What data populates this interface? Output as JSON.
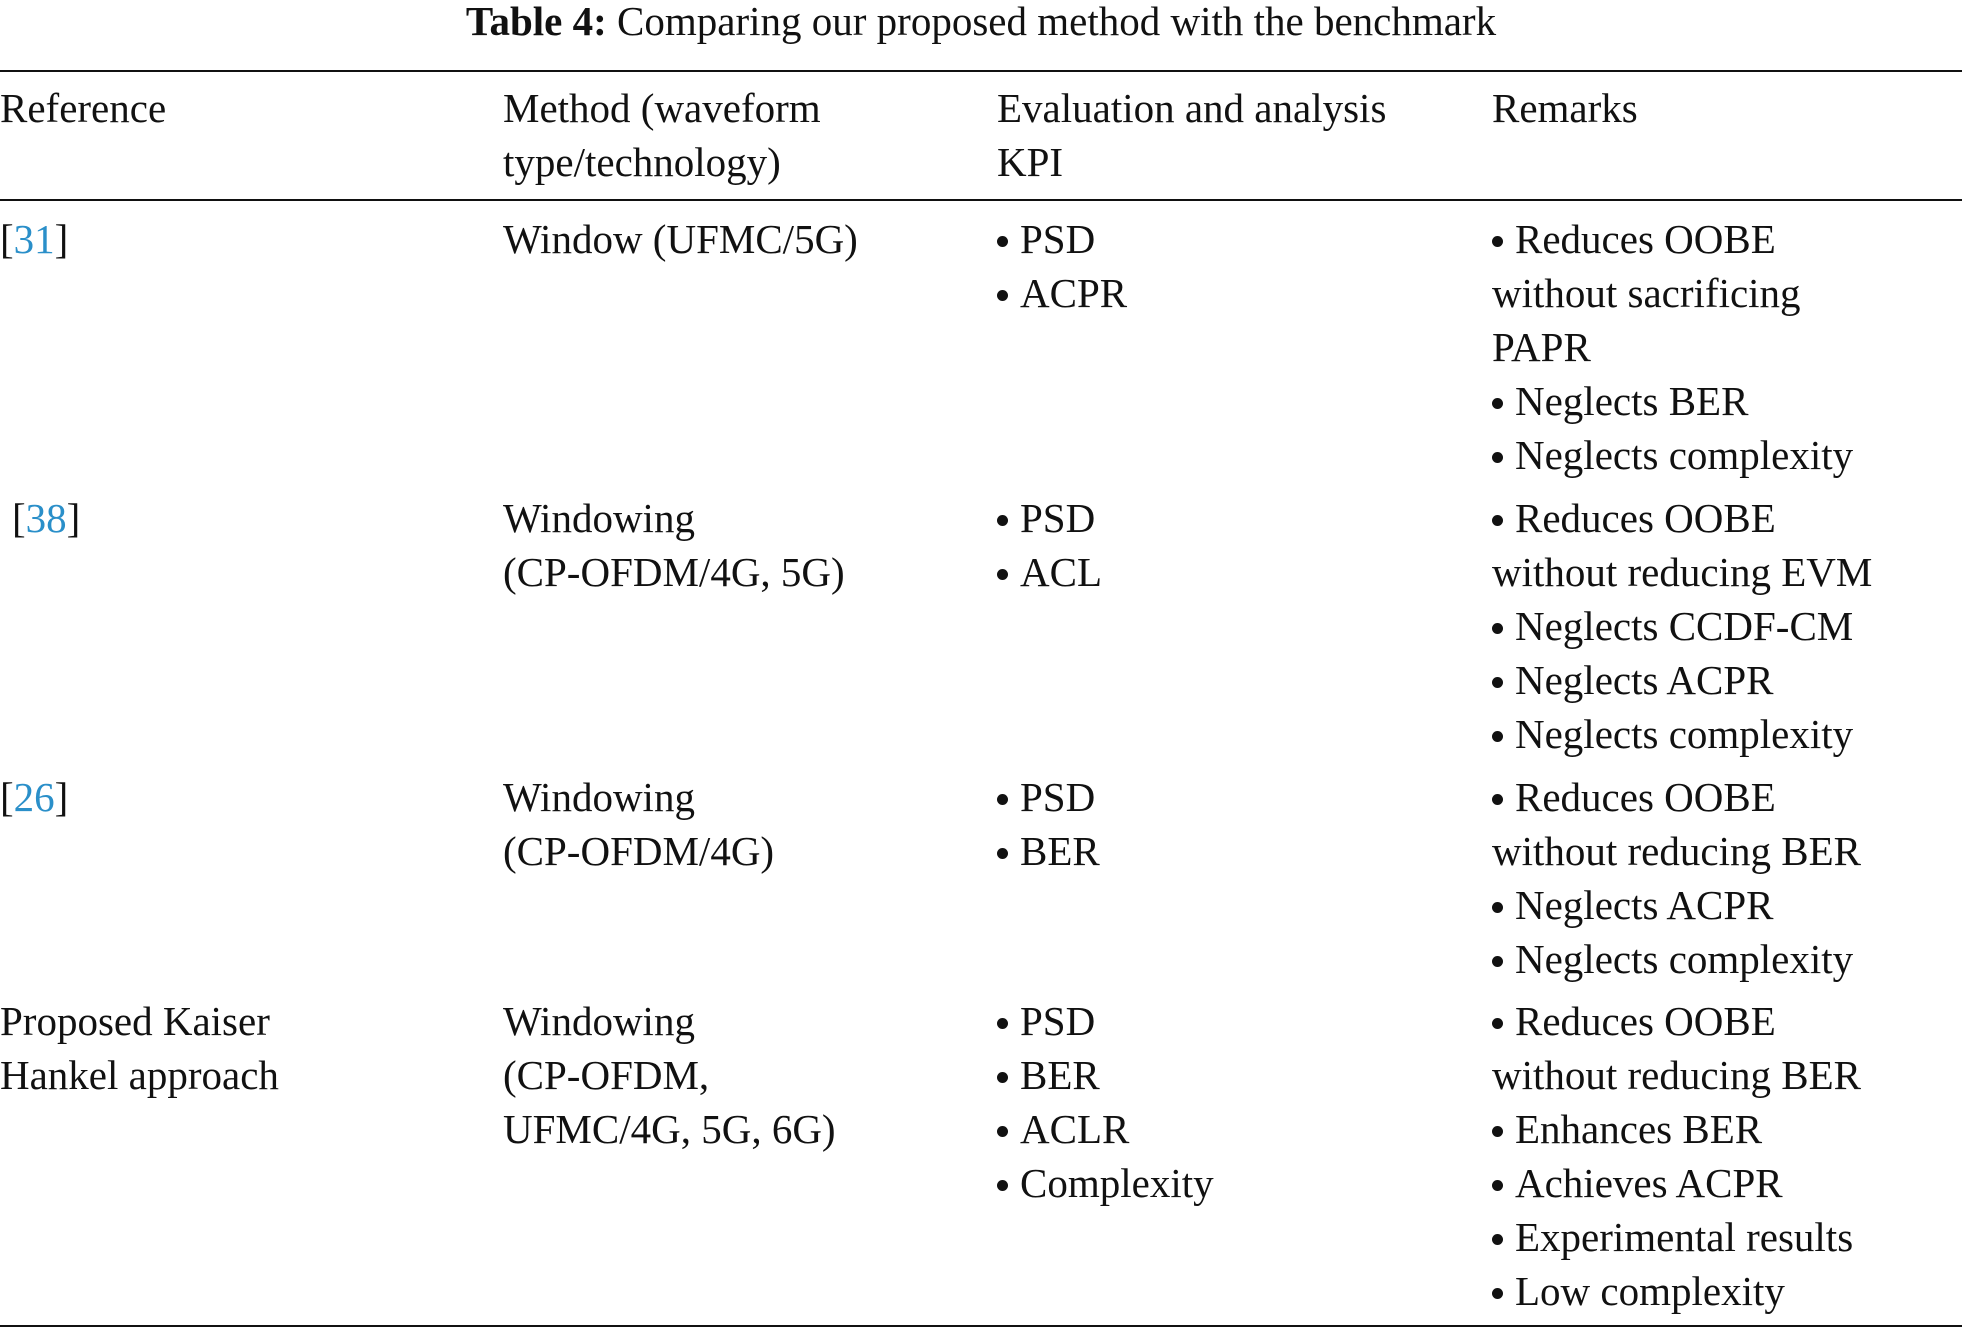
{
  "table": {
    "caption": {
      "label": "Table 4:",
      "text": "Comparing our proposed method with the benchmark"
    },
    "headers": [
      [
        "Reference"
      ],
      [
        "Method (waveform",
        "type/technology)"
      ],
      [
        "Evaluation and analysis",
        "KPI"
      ],
      [
        "Remarks"
      ]
    ],
    "rows": [
      {
        "reference": {
          "open": "[",
          "cite": "31",
          "close": "]"
        },
        "method": [
          "Window (UFMC/5G)"
        ],
        "kpi": [
          [
            "PSD"
          ],
          [
            "ACPR"
          ]
        ],
        "remarks": [
          [
            "Reduces OOBE",
            "without sacrificing",
            "PAPR"
          ],
          [
            "Neglects BER"
          ],
          [
            "Neglects complexity"
          ]
        ]
      },
      {
        "reference": {
          "open": "[",
          "cite": "38",
          "close": "]"
        },
        "method": [
          "Windowing",
          "(CP-OFDM/4G, 5G)"
        ],
        "kpi": [
          [
            "PSD"
          ],
          [
            "ACL"
          ]
        ],
        "remarks": [
          [
            "Reduces OOBE",
            "without reducing EVM"
          ],
          [
            "Neglects CCDF-CM"
          ],
          [
            "Neglects ACPR"
          ],
          [
            "Neglects complexity"
          ]
        ]
      },
      {
        "reference": {
          "open": "[",
          "cite": "26",
          "close": "]"
        },
        "method": [
          "Windowing",
          "(CP-OFDM/4G)"
        ],
        "kpi": [
          [
            "PSD"
          ],
          [
            "BER"
          ]
        ],
        "remarks": [
          [
            "Reduces OOBE",
            "without reducing BER"
          ],
          [
            "Neglects ACPR"
          ],
          [
            "Neglects complexity"
          ]
        ]
      },
      {
        "reference": {
          "lines": [
            "Proposed Kaiser",
            "Hankel approach"
          ]
        },
        "method": [
          "Windowing",
          "(CP-OFDM,",
          "UFMC/4G, 5G, 6G)"
        ],
        "kpi": [
          [
            "PSD"
          ],
          [
            "BER"
          ],
          [
            "ACLR"
          ],
          [
            "Complexity"
          ]
        ],
        "remarks": [
          [
            "Reduces OOBE",
            "without reducing BER"
          ],
          [
            "Enhances BER"
          ],
          [
            "Achieves ACPR"
          ],
          [
            "Experimental results"
          ],
          [
            "Low complexity"
          ]
        ]
      }
    ]
  }
}
